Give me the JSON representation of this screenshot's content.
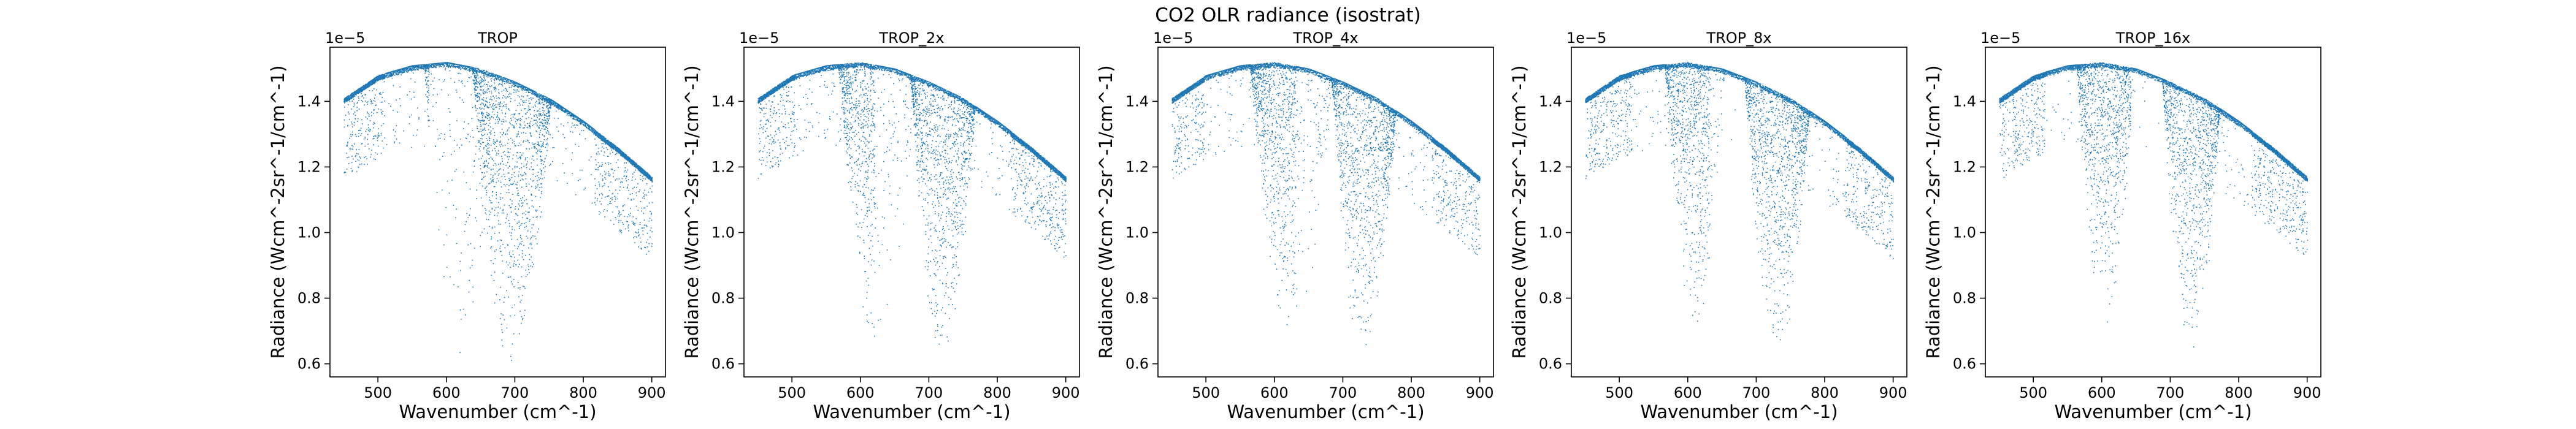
{
  "figure": {
    "suptitle": "CO2 OLR radiance (isostrat)"
  },
  "chart_data": [
    {
      "type": "scatter",
      "title": "TROP",
      "xlabel": "Wavenumber (cm^-1)",
      "ylabel": "Radiance (Wcm^-2sr^-1/cm^-1)",
      "y_offset_label": "1e−5",
      "xlim": [
        430,
        920
      ],
      "ylim": [
        0.56,
        1.565
      ],
      "xticks": [
        500,
        600,
        700,
        800,
        900
      ],
      "yticks": [
        0.6,
        0.8,
        1.0,
        1.2,
        1.4
      ],
      "xtick_labels": [
        "500",
        "600",
        "700",
        "800",
        "900"
      ],
      "ytick_labels": [
        "0.6",
        "0.8",
        "1.0",
        "1.2",
        "1.4"
      ],
      "color": "#1f77b4",
      "envelope": {
        "x": [
          450,
          500,
          550,
          600,
          650,
          700,
          750,
          800,
          850,
          900
        ],
        "y": [
          1.41,
          1.48,
          1.51,
          1.52,
          1.5,
          1.46,
          1.41,
          1.34,
          1.26,
          1.17
        ]
      },
      "bands": [
        {
          "center_x": 620,
          "min_y": 0.59,
          "width_x": 50
        },
        {
          "center_x": 695,
          "min_y": 0.59,
          "width_x": 55
        }
      ]
    },
    {
      "type": "scatter",
      "title": "TROP_2x",
      "xlabel": "Wavenumber (cm^-1)",
      "ylabel": "Radiance (Wcm^-2sr^-1/cm^-1)",
      "y_offset_label": "1e−5",
      "xlim": [
        430,
        920
      ],
      "ylim": [
        0.56,
        1.565
      ],
      "xticks": [
        500,
        600,
        700,
        800,
        900
      ],
      "yticks": [
        0.6,
        0.8,
        1.0,
        1.2,
        1.4
      ],
      "xtick_labels": [
        "500",
        "600",
        "700",
        "800",
        "900"
      ],
      "ytick_labels": [
        "0.6",
        "0.8",
        "1.0",
        "1.2",
        "1.4"
      ],
      "color": "#1f77b4",
      "envelope": {
        "x": [
          450,
          500,
          550,
          600,
          650,
          700,
          750,
          800,
          850,
          900
        ],
        "y": [
          1.41,
          1.48,
          1.51,
          1.52,
          1.5,
          1.46,
          1.41,
          1.34,
          1.26,
          1.17
        ]
      },
      "bands": [
        {
          "center_x": 625,
          "min_y": 0.64,
          "width_x": 55
        },
        {
          "center_x": 720,
          "min_y": 0.61,
          "width_x": 45
        }
      ]
    },
    {
      "type": "scatter",
      "title": "TROP_4x",
      "xlabel": "Wavenumber (cm^-1)",
      "ylabel": "Radiance (Wcm^-2sr^-1/cm^-1)",
      "y_offset_label": "1e−5",
      "xlim": [
        430,
        920
      ],
      "ylim": [
        0.56,
        1.565
      ],
      "xticks": [
        500,
        600,
        700,
        800,
        900
      ],
      "yticks": [
        0.6,
        0.8,
        1.0,
        1.2,
        1.4
      ],
      "xtick_labels": [
        "500",
        "600",
        "700",
        "800",
        "900"
      ],
      "ytick_labels": [
        "0.6",
        "0.8",
        "1.0",
        "1.2",
        "1.4"
      ],
      "color": "#1f77b4",
      "envelope": {
        "x": [
          450,
          500,
          550,
          600,
          650,
          700,
          750,
          800,
          850,
          900
        ],
        "y": [
          1.41,
          1.48,
          1.51,
          1.52,
          1.5,
          1.46,
          1.41,
          1.34,
          1.26,
          1.17
        ]
      },
      "bands": [
        {
          "center_x": 625,
          "min_y": 0.68,
          "width_x": 58
        },
        {
          "center_x": 730,
          "min_y": 0.62,
          "width_x": 45
        }
      ]
    },
    {
      "type": "scatter",
      "title": "TROP_8x",
      "xlabel": "Wavenumber (cm^-1)",
      "ylabel": "Radiance (Wcm^-2sr^-1/cm^-1)",
      "y_offset_label": "1e−5",
      "xlim": [
        430,
        920
      ],
      "ylim": [
        0.56,
        1.565
      ],
      "xticks": [
        500,
        600,
        700,
        800,
        900
      ],
      "yticks": [
        0.6,
        0.8,
        1.0,
        1.2,
        1.4
      ],
      "xtick_labels": [
        "500",
        "600",
        "700",
        "800",
        "900"
      ],
      "ytick_labels": [
        "0.6",
        "0.8",
        "1.0",
        "1.2",
        "1.4"
      ],
      "color": "#1f77b4",
      "envelope": {
        "x": [
          450,
          500,
          550,
          600,
          650,
          700,
          750,
          800,
          850,
          900
        ],
        "y": [
          1.41,
          1.48,
          1.51,
          1.52,
          1.5,
          1.46,
          1.41,
          1.34,
          1.26,
          1.17
        ]
      },
      "bands": [
        {
          "center_x": 610,
          "min_y": 0.71,
          "width_x": 42
        },
        {
          "center_x": 730,
          "min_y": 0.62,
          "width_x": 45
        }
      ]
    },
    {
      "type": "scatter",
      "title": "TROP_16x",
      "xlabel": "Wavenumber (cm^-1)",
      "ylabel": "Radiance (Wcm^-2sr^-1/cm^-1)",
      "y_offset_label": "1e−5",
      "xlim": [
        430,
        920
      ],
      "ylim": [
        0.56,
        1.565
      ],
      "xticks": [
        500,
        600,
        700,
        800,
        900
      ],
      "yticks": [
        0.6,
        0.8,
        1.0,
        1.2,
        1.4
      ],
      "xtick_labels": [
        "500",
        "600",
        "700",
        "800",
        "900"
      ],
      "ytick_labels": [
        "0.6",
        "0.8",
        "1.0",
        "1.2",
        "1.4"
      ],
      "color": "#1f77b4",
      "envelope": {
        "x": [
          450,
          500,
          550,
          600,
          650,
          700,
          750,
          800,
          850,
          900
        ],
        "y": [
          1.41,
          1.48,
          1.51,
          1.52,
          1.5,
          1.46,
          1.41,
          1.34,
          1.26,
          1.17
        ]
      },
      "bands": [
        {
          "center_x": 605,
          "min_y": 0.72,
          "width_x": 40
        },
        {
          "center_x": 730,
          "min_y": 0.61,
          "width_x": 40
        }
      ]
    }
  ]
}
